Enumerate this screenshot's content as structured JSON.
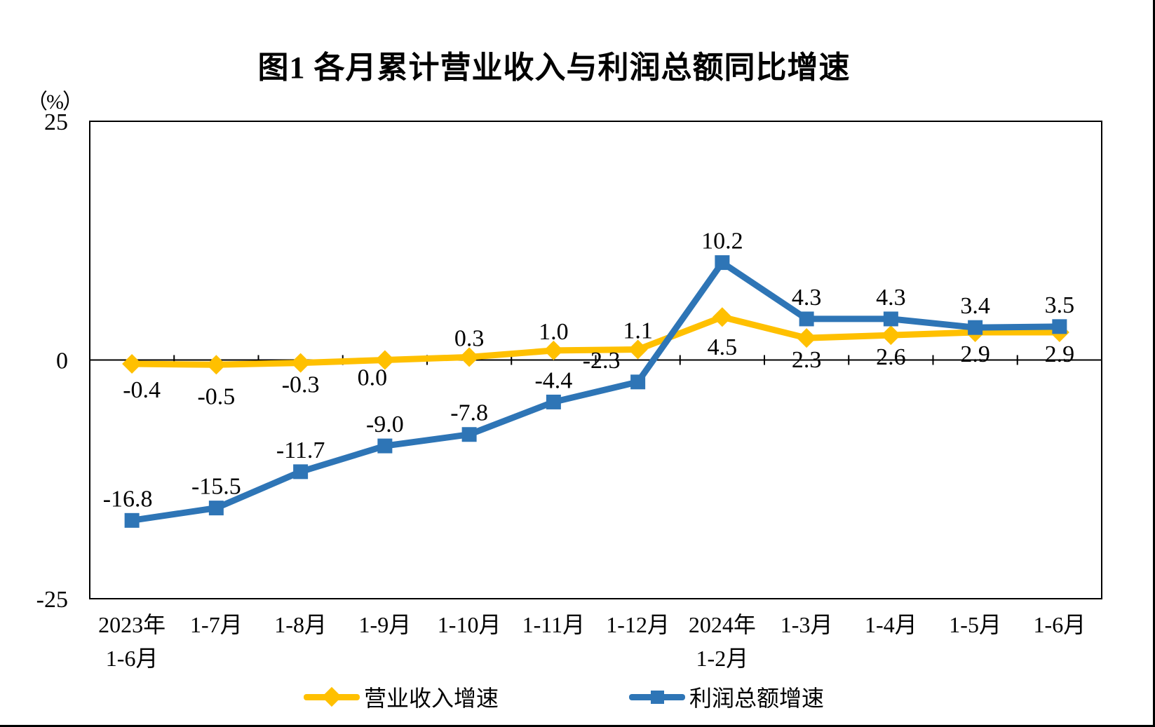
{
  "page": {
    "title": "图1  各月累计营业收入与利润总额同比增速",
    "y_unit_label": "（%）"
  },
  "chart_data": {
    "type": "line",
    "title": "图1  各月累计营业收入与利润总额同比增速",
    "y_axis": {
      "label": "（%）",
      "min": -25,
      "max": 25,
      "ticks": [
        "25",
        "0",
        "-25"
      ]
    },
    "grid": "zero-line-only",
    "legend_position": "bottom",
    "categories": [
      [
        "2023年",
        "1-6月"
      ],
      [
        "1-7月"
      ],
      [
        "1-8月"
      ],
      [
        "1-9月"
      ],
      [
        "1-10月"
      ],
      [
        "1-11月"
      ],
      [
        "1-12月"
      ],
      [
        "2024年",
        "1-2月"
      ],
      [
        "1-3月"
      ],
      [
        "1-4月"
      ],
      [
        "1-5月"
      ],
      [
        "1-6月"
      ]
    ],
    "series": [
      {
        "name": "营业收入增速",
        "color": "#FFC000",
        "marker": "diamond",
        "values": [
          -0.4,
          -0.5,
          -0.3,
          0.0,
          0.3,
          1.0,
          1.1,
          4.5,
          2.3,
          2.6,
          2.9,
          2.9
        ],
        "labels": [
          "-0.4",
          "-0.5",
          "-0.3",
          "0.0",
          "0.3",
          "1.0",
          "1.1",
          "4.5",
          "2.3",
          "2.6",
          "2.9",
          "2.9"
        ],
        "label_side": [
          "below",
          "below",
          "below",
          "below",
          "above",
          "above",
          "above",
          "below",
          "below",
          "below",
          "below",
          "below"
        ]
      },
      {
        "name": "利润总额增速",
        "color": "#2E75B6",
        "marker": "square",
        "values": [
          -16.8,
          -15.5,
          -11.7,
          -9.0,
          -7.8,
          -4.4,
          -2.3,
          10.2,
          4.3,
          4.3,
          3.4,
          3.5
        ],
        "labels": [
          "-16.8",
          "-15.5",
          "-11.7",
          "-9.0",
          "-7.8",
          "-4.4",
          "-2.3",
          "10.2",
          "4.3",
          "4.3",
          "3.4",
          "3.5"
        ],
        "label_side": [
          "above",
          "above",
          "above",
          "above",
          "above",
          "above",
          "above",
          "above",
          "above",
          "above",
          "above",
          "above"
        ]
      }
    ]
  }
}
